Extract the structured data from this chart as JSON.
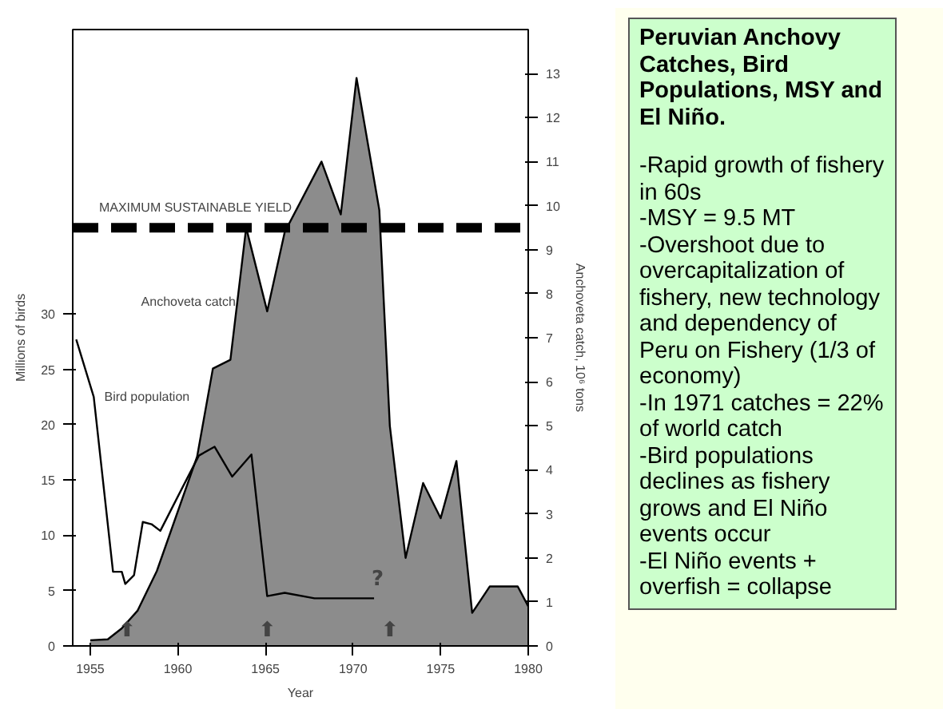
{
  "chart_data": [
    {
      "type": "line",
      "xlabel": "Year",
      "ylabel": "Millions of birds",
      "y2label": "Anchoveta catch, 10⁶ tons",
      "xlim": [
        1954,
        1980
      ],
      "xticks": [
        1955,
        1960,
        1965,
        1970,
        1975,
        1980
      ],
      "ylim": [
        0,
        55.7
      ],
      "yticks": [
        0,
        5,
        10,
        15,
        20,
        25,
        30
      ],
      "y2lim": [
        0,
        14
      ],
      "y2ticks": [
        0,
        1,
        2,
        3,
        4,
        5,
        6,
        7,
        8,
        9,
        10,
        11,
        12,
        13
      ],
      "grid": false,
      "series": [
        {
          "name": "Anchoveta catch",
          "type": "area",
          "axis": "y2",
          "color": "#8c8c8c",
          "x": [
            1955.0,
            1956.0,
            1956.8,
            1957.7,
            1958.8,
            1961.1,
            1962.0,
            1963.0,
            1963.9,
            1965.1,
            1966.1,
            1968.2,
            1969.3,
            1970.2,
            1971.5,
            1972.1,
            1973.0,
            1974.0,
            1975.0,
            1975.9,
            1976.8,
            1977.8,
            1979.4,
            1980.0
          ],
          "values": [
            0.13,
            0.15,
            0.4,
            0.8,
            1.7,
            4.3,
            6.3,
            6.5,
            9.5,
            7.6,
            9.4,
            11.0,
            9.8,
            12.9,
            9.9,
            5.0,
            2.0,
            3.7,
            2.9,
            4.2,
            0.75,
            1.35,
            1.35,
            0.9
          ]
        },
        {
          "name": "Bird population",
          "type": "line",
          "color": "#000000",
          "x": [
            1954.2,
            1955.2,
            1956.3,
            1956.8,
            1957.0,
            1957.5,
            1958.0,
            1958.5,
            1959.0,
            1960.0,
            1961.2,
            1962.1,
            1963.1,
            1964.2,
            1965.1,
            1966.1,
            1967.8,
            1971.2
          ],
          "values": [
            27.7,
            22.5,
            6.7,
            6.7,
            5.6,
            6.4,
            11.2,
            11.0,
            10.4,
            13.5,
            17.2,
            18.0,
            15.3,
            17.3,
            4.5,
            4.8,
            4.3,
            4.3
          ]
        }
      ],
      "ref_lines": [
        {
          "axis": "y2",
          "value": 9.5,
          "label": "MAXIMUM SUSTAINABLE YIELD",
          "color": "#000000",
          "line_style": "dashed"
        }
      ],
      "annotations": [
        {
          "text": "⬆",
          "x": 1957.1,
          "y": 0
        },
        {
          "text": "⬆",
          "x": 1965.1,
          "y": 0
        },
        {
          "text": "⬆",
          "x": 1972.1,
          "y": 0
        },
        {
          "text": "?",
          "x": 1971.4,
          "y": 4.6
        }
      ]
    },
    {
      "type": "other",
      "title": "Peruvian Anchovy Catches, Bird Populations, MSY and El Niño.",
      "annotations": [
        "-Rapid growth of fishery in 60s",
        "-MSY = 9.5 MT",
        "-Overshoot due to overcapitalization of fishery, new technology and dependency of Peru on Fishery (1/3 of economy)",
        "-In 1971 catches = 22% of world catch",
        "-Bird populations declines as fishery grows and El Niño events occur",
        "-El Niño events + overfish = collapse"
      ]
    }
  ]
}
